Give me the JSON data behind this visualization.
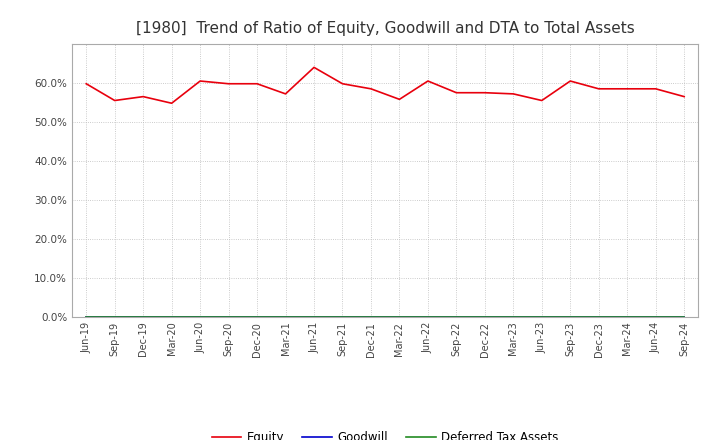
{
  "title": "[1980]  Trend of Ratio of Equity, Goodwill and DTA to Total Assets",
  "x_labels": [
    "Jun-19",
    "Sep-19",
    "Dec-19",
    "Mar-20",
    "Jun-20",
    "Sep-20",
    "Dec-20",
    "Mar-21",
    "Jun-21",
    "Sep-21",
    "Dec-21",
    "Mar-22",
    "Jun-22",
    "Sep-22",
    "Dec-22",
    "Mar-23",
    "Jun-23",
    "Sep-23",
    "Dec-23",
    "Mar-24",
    "Jun-24",
    "Sep-24"
  ],
  "equity": [
    59.8,
    55.5,
    56.5,
    54.8,
    60.5,
    59.8,
    59.8,
    57.2,
    64.0,
    59.8,
    58.5,
    55.8,
    60.5,
    57.5,
    57.5,
    57.2,
    55.5,
    60.5,
    58.5,
    58.5,
    58.5,
    56.5
  ],
  "goodwill": [
    0,
    0,
    0,
    0,
    0,
    0,
    0,
    0,
    0,
    0,
    0,
    0,
    0,
    0,
    0,
    0,
    0,
    0,
    0,
    0,
    0,
    0
  ],
  "dta": [
    0,
    0,
    0,
    0,
    0,
    0,
    0,
    0,
    0,
    0,
    0,
    0,
    0,
    0,
    0,
    0,
    0,
    0,
    0,
    0,
    0,
    0
  ],
  "equity_color": "#e8000d",
  "goodwill_color": "#0000cd",
  "dta_color": "#228b22",
  "ylim": [
    0,
    70
  ],
  "yticks": [
    0,
    10,
    20,
    30,
    40,
    50,
    60
  ],
  "background_color": "#ffffff",
  "grid_color": "#aaaaaa",
  "title_fontsize": 11,
  "legend_labels": [
    "Equity",
    "Goodwill",
    "Deferred Tax Assets"
  ]
}
